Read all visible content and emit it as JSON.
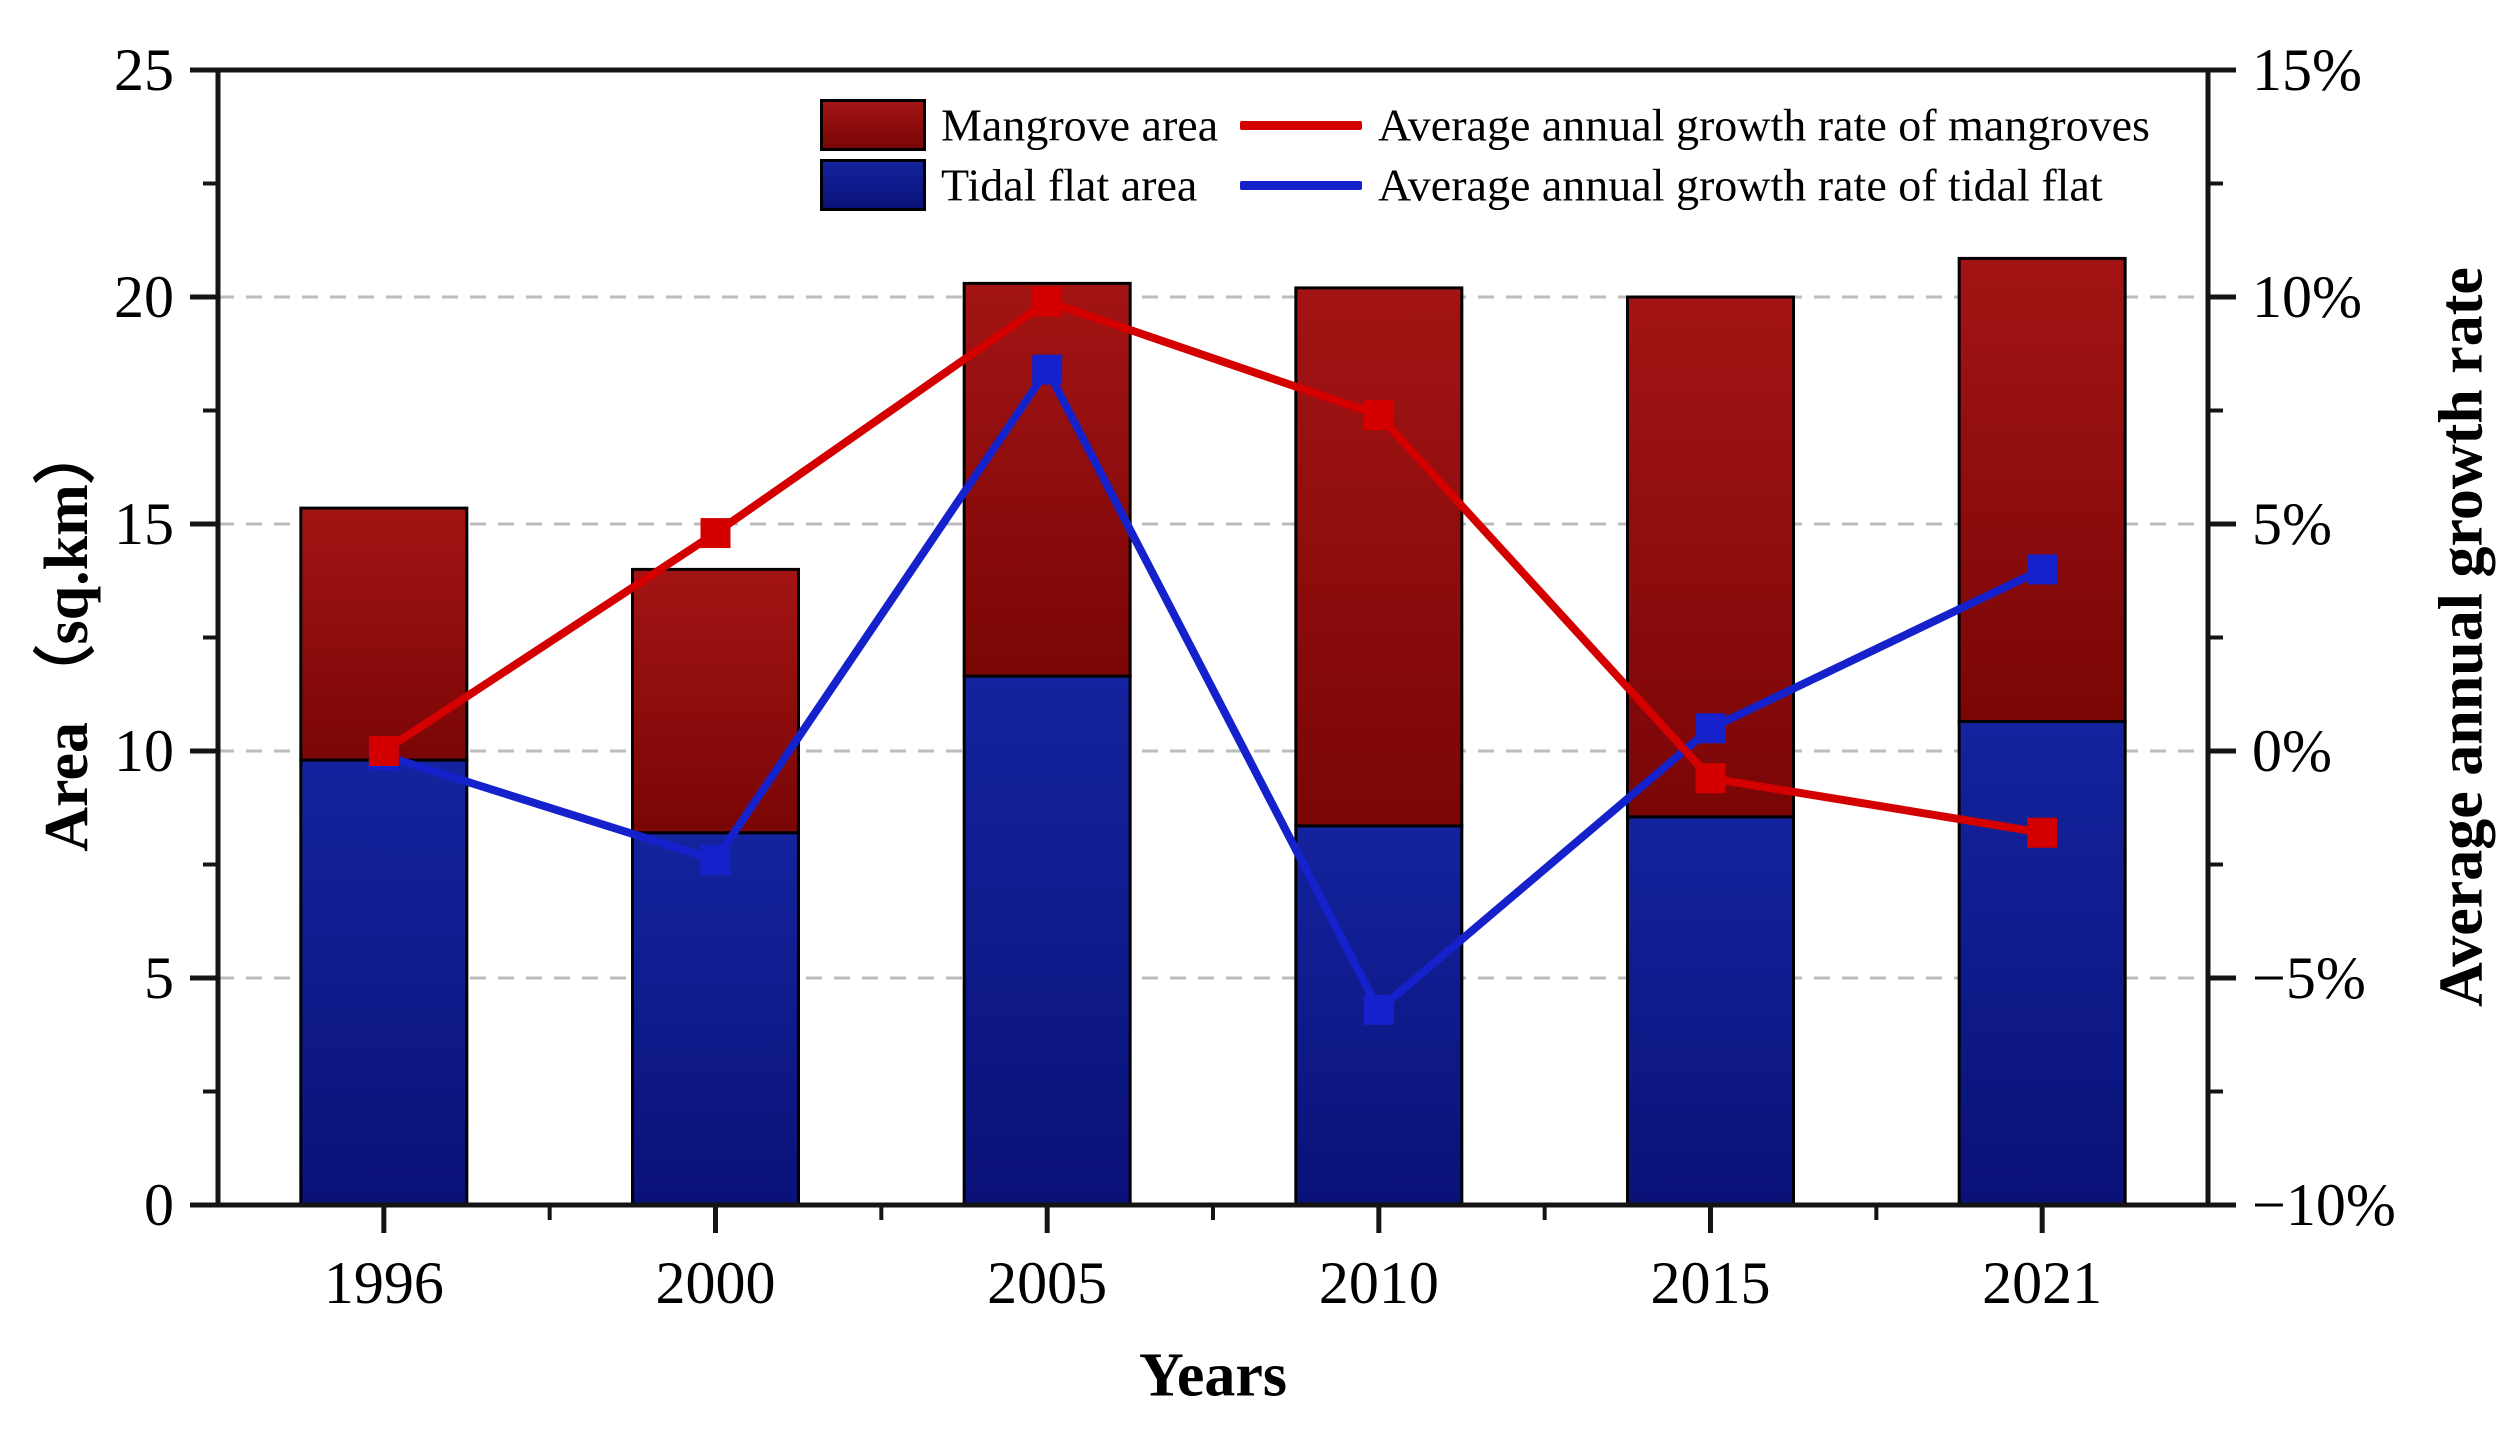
{
  "chart_data": {
    "type": "bar",
    "subtype": "stacked-bar-with-dual-axis-lines",
    "categories": [
      "1996",
      "2000",
      "2005",
      "2010",
      "2015",
      "2021"
    ],
    "bar_series": [
      {
        "name": "Mangrove area",
        "stack_position": "top",
        "values_sqkm": [
          5.55,
          5.8,
          8.65,
          11.85,
          11.45,
          10.2
        ],
        "color": "#a31414",
        "color_bottom": "#7a0606"
      },
      {
        "name": "Tidal flat area",
        "stack_position": "bottom",
        "values_sqkm": [
          9.8,
          8.2,
          11.65,
          8.35,
          8.55,
          10.65
        ],
        "color": "#14239e",
        "color_bottom": "#0a1278"
      }
    ],
    "stacked_totals_sqkm": [
      15.35,
      14.0,
      20.3,
      20.2,
      20.0,
      20.85
    ],
    "line_series": [
      {
        "name": "Average annual growth rate of mangroves",
        "values_pct": [
          0.0,
          4.8,
          9.9,
          7.4,
          -0.6,
          -1.8
        ],
        "color": "#d40000"
      },
      {
        "name": "Average annual growth rate of tidal flat",
        "values_pct": [
          -0.1,
          -2.4,
          8.4,
          -5.7,
          0.5,
          4.0
        ],
        "color": "#1522cc"
      }
    ],
    "left_axis": {
      "title": "Area （sq.km）",
      "range": [
        0,
        25
      ],
      "major_ticks": [
        0,
        5,
        10,
        15,
        20,
        25
      ],
      "major_tick_labels": [
        "0",
        "5",
        "10",
        "15",
        "20",
        "25"
      ],
      "minor_tick_step": 2.5
    },
    "right_axis": {
      "title": "Average annual growth rate",
      "range_pct": [
        -10,
        15
      ],
      "major_ticks_pct": [
        -10,
        -5,
        0,
        5,
        10,
        15
      ],
      "major_tick_labels": [
        "−10%",
        "−5%",
        "0%",
        "5%",
        "10%",
        "15%"
      ],
      "minor_tick_step_pct": 2.5
    },
    "x_axis": {
      "title": "Years"
    },
    "gridlines_left_units": [
      5,
      10,
      15,
      20
    ],
    "grid_on": true,
    "legend_position": "inside-top",
    "colors": {
      "axis": "#141414",
      "grid": "#bcbcbc",
      "background": "#ffffff"
    }
  }
}
